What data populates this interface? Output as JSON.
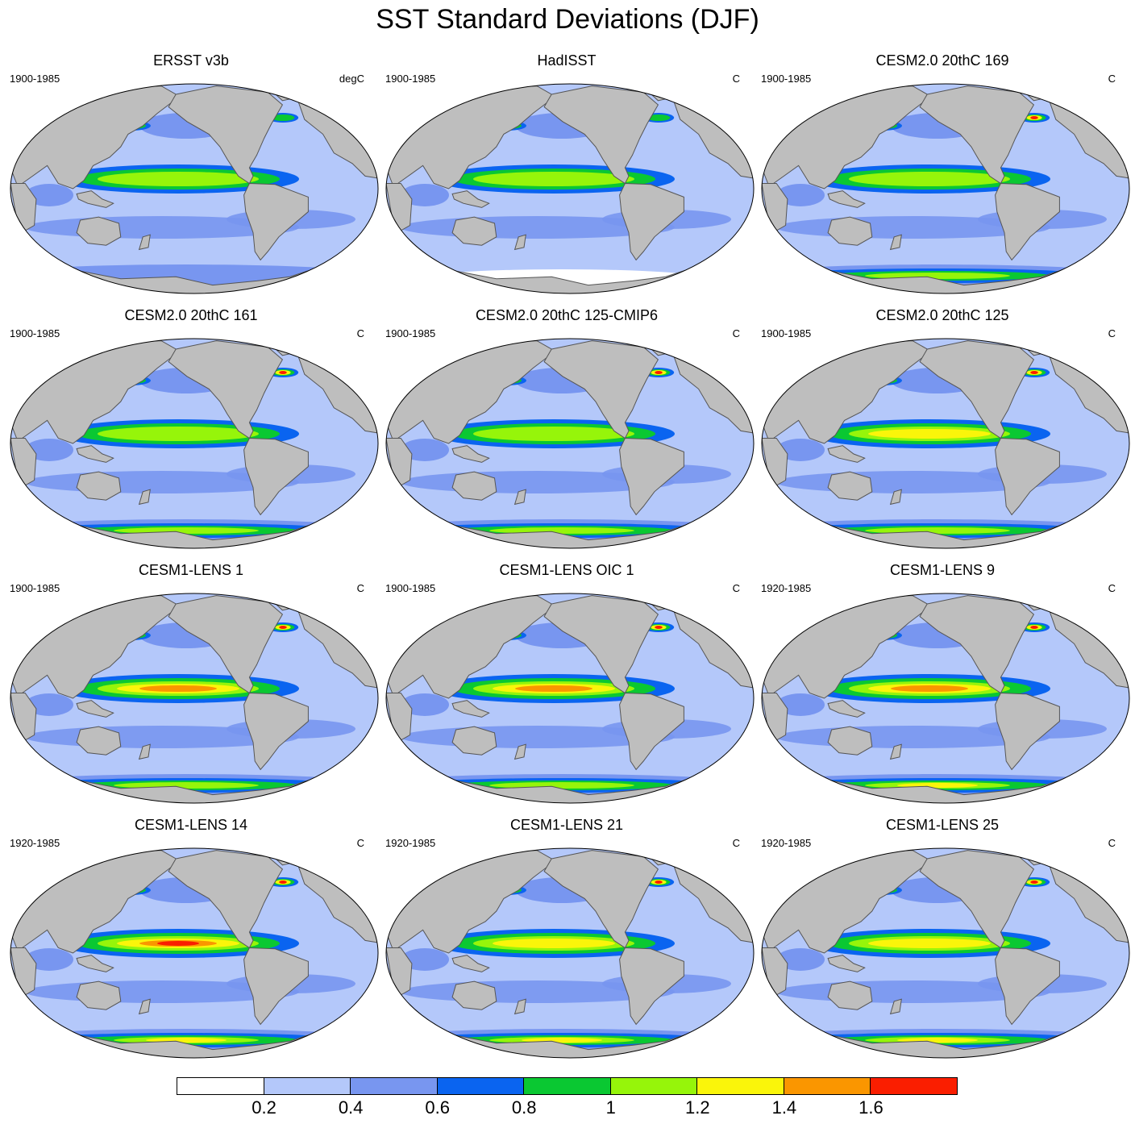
{
  "title": "SST Standard Deviations (DJF)",
  "panels": [
    {
      "title": "ERSST v3b",
      "period": "1900-1985",
      "units": "degC",
      "eq_peak": 1.1,
      "nh_peak": 0.9,
      "so_peak": 0.5
    },
    {
      "title": "HadISST",
      "period": "1900-1985",
      "units": "C",
      "eq_peak": 1.1,
      "nh_peak": 0.8,
      "so_peak": 0.3
    },
    {
      "title": "CESM2.0 20thC 169",
      "period": "1900-1985",
      "units": "C",
      "eq_peak": 1.1,
      "nh_peak": 1.6,
      "so_peak": 1.0
    },
    {
      "title": "CESM2.0 20thC 161",
      "period": "1900-1985",
      "units": "C",
      "eq_peak": 1.1,
      "nh_peak": 1.6,
      "so_peak": 1.0
    },
    {
      "title": "CESM2.0 20thC 125-CMIP6",
      "period": "1900-1985",
      "units": "C",
      "eq_peak": 1.1,
      "nh_peak": 1.6,
      "so_peak": 1.0
    },
    {
      "title": "CESM2.0 20thC 125",
      "period": "1900-1985",
      "units": "C",
      "eq_peak": 1.2,
      "nh_peak": 1.6,
      "so_peak": 1.1
    },
    {
      "title": "CESM1-LENS 1",
      "period": "1900-1985",
      "units": "C",
      "eq_peak": 1.5,
      "nh_peak": 1.6,
      "so_peak": 1.0
    },
    {
      "title": "CESM1-LENS OIC 1",
      "period": "1900-1985",
      "units": "C",
      "eq_peak": 1.5,
      "nh_peak": 1.6,
      "so_peak": 1.0
    },
    {
      "title": "CESM1-LENS 9",
      "period": "1920-1985",
      "units": "C",
      "eq_peak": 1.5,
      "nh_peak": 1.7,
      "so_peak": 1.3
    },
    {
      "title": "CESM1-LENS 14",
      "period": "1920-1985",
      "units": "C",
      "eq_peak": 1.7,
      "nh_peak": 1.7,
      "so_peak": 1.3
    },
    {
      "title": "CESM1-LENS 21",
      "period": "1920-1985",
      "units": "C",
      "eq_peak": 1.3,
      "nh_peak": 1.7,
      "so_peak": 1.3
    },
    {
      "title": "CESM1-LENS 25",
      "period": "1920-1985",
      "units": "C",
      "eq_peak": 1.3,
      "nh_peak": 1.7,
      "so_peak": 1.3
    }
  ],
  "colorbar": {
    "levels": [
      "0.2",
      "0.4",
      "0.6",
      "0.8",
      "1",
      "1.2",
      "1.4",
      "1.6"
    ],
    "colors": [
      "#ffffff",
      "#b4c8fa",
      "#7896f0",
      "#0a64f0",
      "#0ac832",
      "#96f50a",
      "#faf50a",
      "#fa9600",
      "#fa1e00"
    ]
  },
  "land_color": "#bebebe",
  "ocean_base_color": "#b4c8fa"
}
